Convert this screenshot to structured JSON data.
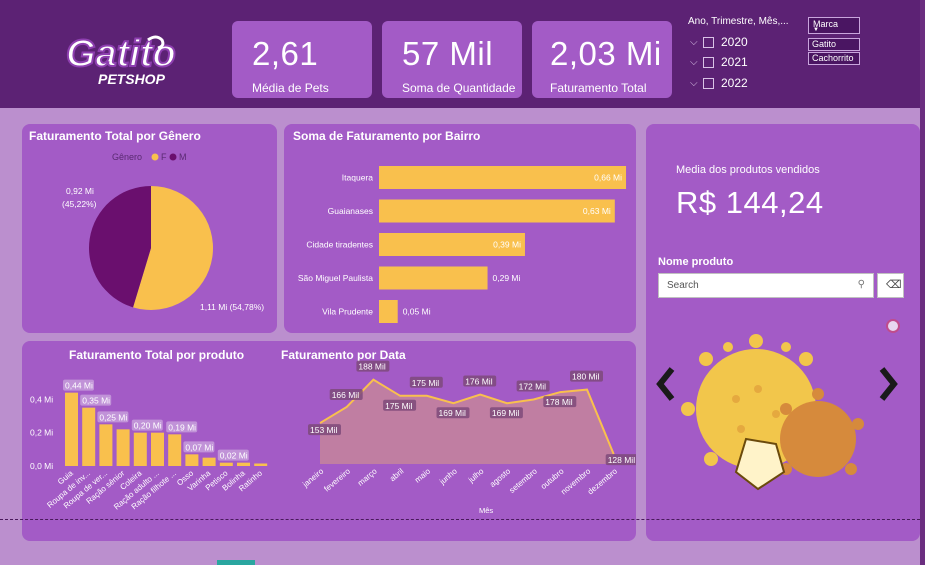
{
  "brand": {
    "name": "Gatito",
    "sub": "PETSHOP"
  },
  "kpis": [
    {
      "value": "2,61",
      "label": "Média de Pets"
    },
    {
      "value": "57 Mil",
      "label": "Soma de Quantidade"
    },
    {
      "value": "2,03 Mi",
      "label": "Faturamento Total"
    }
  ],
  "date_slicer": {
    "title": "Ano, Trimestre, Mês,...",
    "items": [
      "2020",
      "2021",
      "2022"
    ]
  },
  "marca_slicer": {
    "title": "Marca",
    "items": [
      "Gatito",
      "Cachorrito"
    ]
  },
  "colors": {
    "yellow": "#f9c04d",
    "purple": "#6a0f6e",
    "panel": "#a35bc6",
    "header": "#5c2274",
    "orange": "#d98a3d"
  },
  "media_card": {
    "title": "Media dos produtos vendidos",
    "value": "R$ 144,24"
  },
  "nome_produto": {
    "title": "Nome produto",
    "placeholder": "Search"
  },
  "chart_data": [
    {
      "type": "pie",
      "title": "Faturamento Total por Gênero",
      "legend_title": "Gênero",
      "legend": [
        "F",
        "M"
      ],
      "labels": [
        "F",
        "M"
      ],
      "values": [
        1.11,
        0.92
      ],
      "data_labels": [
        "1,11 Mi (54,78%)",
        "0,92 Mi (45,22%)"
      ],
      "legend_position": "top"
    },
    {
      "type": "bar",
      "orientation": "horizontal",
      "title": "Soma de Faturamento por Bairro",
      "categories": [
        "Itaquera",
        "Guaianases",
        "Cidade tiradentes",
        "São Miguel Paulista",
        "Vila Prudente"
      ],
      "values": [
        0.66,
        0.63,
        0.39,
        0.29,
        0.05
      ],
      "data_labels": [
        "0,66 Mi",
        "0,63 Mi",
        "0,39 Mi",
        "0,29 Mi",
        "0,05 Mi"
      ],
      "xlim": [
        0,
        0.7
      ]
    },
    {
      "type": "bar",
      "title": "Faturamento Total por produto",
      "categories": [
        "Guia",
        "Roupa de inv...",
        "Roupa de ver...",
        "Ração sênior",
        "Coleira",
        "Ração adulto ...",
        "Ração filhote ...",
        "Osso",
        "Varinha",
        "Petisco",
        "Bolinha",
        "Ratinho"
      ],
      "values": [
        0.44,
        0.35,
        0.25,
        0.22,
        0.2,
        0.2,
        0.19,
        0.07,
        0.05,
        0.02,
        0.02,
        0.015
      ],
      "data_labels": [
        "0,44 Mi",
        "0,35 Mi",
        "0,25 Mi",
        "",
        "0,20 Mi",
        "",
        "0,19 Mi",
        "0,07 Mi",
        "",
        "0,02 Mi",
        "",
        ""
      ],
      "yticks": [
        "0,0 Mi",
        "0,2 Mi",
        "0,4 Mi"
      ],
      "ylim": [
        0,
        0.45
      ]
    },
    {
      "type": "area",
      "title": "Faturamento por Data",
      "xlabel": "Mês",
      "categories": [
        "janeiro",
        "fevereiro",
        "março",
        "abril",
        "maio",
        "junho",
        "julho",
        "agosto",
        "setembro",
        "outubro",
        "novembro",
        "dezembro"
      ],
      "values": [
        153,
        166,
        188,
        175,
        175,
        169,
        176,
        169,
        172,
        178,
        180,
        128
      ],
      "data_labels": [
        "153 Mil",
        "166 Mil",
        "188 Mil",
        "175 Mil",
        "175 Mil",
        "169 Mil",
        "176 Mil",
        "169 Mil",
        "172 Mil",
        "178 Mil",
        "180 Mil",
        "128 Mil"
      ],
      "ylim": [
        120,
        195
      ]
    }
  ]
}
